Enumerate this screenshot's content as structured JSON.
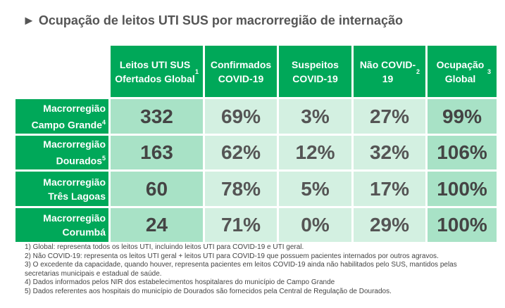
{
  "title": "► Ocupação de leitos UTI SUS por macrorregião de internação",
  "headers": [
    {
      "label": "Leitos UTI SUS Ofertados Global",
      "sup": "1"
    },
    {
      "label": "Confirmados COVID-19",
      "sup": ""
    },
    {
      "label": "Suspeitos COVID-19",
      "sup": ""
    },
    {
      "label": "Não COVID-19",
      "sup": "2"
    },
    {
      "label": "Ocupação Global",
      "sup": "3"
    }
  ],
  "rows": [
    {
      "line1": "Macrorregião",
      "line2": "Campo Grande",
      "sup": "4",
      "values": [
        "332",
        "69%",
        "3%",
        "27%",
        "99%"
      ]
    },
    {
      "line1": "Macrorregião",
      "line2": "Dourados",
      "sup": "5",
      "values": [
        "163",
        "62%",
        "12%",
        "32%",
        "106%"
      ]
    },
    {
      "line1": "Macrorregião",
      "line2": "Três Lagoas",
      "sup": "",
      "values": [
        "60",
        "78%",
        "5%",
        "17%",
        "100%"
      ]
    },
    {
      "line1": "Macrorregião",
      "line2": "Corumbá",
      "sup": "",
      "values": [
        "24",
        "71%",
        "0%",
        "29%",
        "100%"
      ]
    }
  ],
  "notes": [
    "1) Global: representa todos os leitos UTI, incluindo leitos UTI para COVID-19 e UTI geral.",
    "2) Não COVID-19: representa os leitos UTI geral + leitos UTI para COVID-19 que possuem pacientes internados por outros agravos.",
    "3) O excedente da capacidade, quando houver, representa pacientes em leitos COVID-19 ainda não habilitados pelo SUS, mantidos pelas secretarias municipais e estadual de saúde.",
    "4) Dados informados pelos NIR dos estabelecimentos hospitalares do município de Campo Grande",
    "5) Dados referentes aos hospitais do município de Dourados são fornecidos pela Central de Regulação de Dourados."
  ],
  "colors": {
    "header": "#00a859",
    "dark_cell": "#a8e2c6",
    "light_cell": "#d3f0e1"
  }
}
